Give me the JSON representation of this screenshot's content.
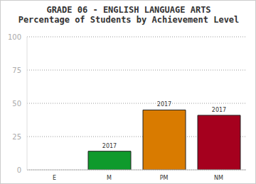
{
  "chart_data": {
    "type": "bar",
    "title": "GRADE 06 - ENGLISH LANGUAGE ARTS",
    "subtitle": "Percentage of Students by Achievement Level",
    "categories": [
      "E",
      "M",
      "PM",
      "NM"
    ],
    "series": [
      {
        "name": "2017",
        "colors": [
          "#1f5fa0",
          "#0f9a2c",
          "#d97b00",
          "#a5001e"
        ],
        "values": [
          0,
          14,
          45,
          41
        ]
      }
    ],
    "ylim": [
      0,
      100
    ],
    "yticks": [
      0,
      25,
      50,
      75,
      100
    ],
    "grid": true
  }
}
